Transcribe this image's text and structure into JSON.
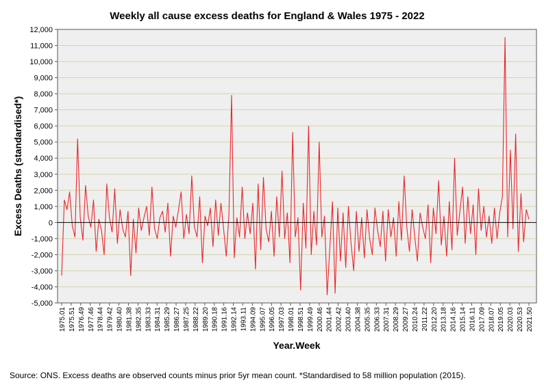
{
  "chart_data": {
    "type": "line",
    "title": "Weekly all cause excess deaths for England & Wales 1975 - 2022",
    "xlabel": "Year.Week",
    "ylabel": "Excess Deaths (standardised*)",
    "ylim": [
      -5000,
      12000
    ],
    "y_ticks": [
      -5000,
      -4000,
      -3000,
      -2000,
      -1000,
      0,
      1000,
      2000,
      3000,
      4000,
      5000,
      6000,
      7000,
      8000,
      9000,
      10000,
      11000,
      12000
    ],
    "y_tick_labels": [
      "-5,000",
      "-4,000",
      "-3,000",
      "-2,000",
      "-1,000",
      "0",
      "1,000",
      "2,000",
      "3,000",
      "4,000",
      "5,000",
      "6,000",
      "7,000",
      "8,000",
      "9,000",
      "10,000",
      "11,000",
      "12,000"
    ],
    "x_tick_labels": [
      "1975.01",
      "1975.51",
      "1976.49",
      "1977.46",
      "1978.44",
      "1979.42",
      "1980.40",
      "1981.38",
      "1982.35",
      "1983.33",
      "1984.31",
      "1985.29",
      "1986.27",
      "1987.25",
      "1988.22",
      "1989.20",
      "1990.18",
      "1991.16",
      "1992.14",
      "1993.11",
      "1994.09",
      "1995.07",
      "1996.05",
      "1997.03",
      "1998.01",
      "1998.51",
      "1999.49",
      "2000.46",
      "2001.44",
      "2002.42",
      "2003.40",
      "2004.38",
      "2005.35",
      "2006.33",
      "2007.31",
      "2008.29",
      "2009.27",
      "2010.24",
      "2011.22",
      "2012.20",
      "2013.18",
      "2014.16",
      "2015.14",
      "2016.11",
      "2017.09",
      "2018.07",
      "2019.05",
      "2020.03",
      "2020.53",
      "2021.50"
    ],
    "grid": true,
    "zero_line": true,
    "legend": "none",
    "series_color": "#e8262a",
    "series": [
      {
        "name": "Excess deaths",
        "x_start": 0,
        "x_end": 49,
        "values": [
          -3300,
          1400,
          800,
          1900,
          -200,
          -900,
          5200,
          300,
          -1100,
          2300,
          400,
          -300,
          1400,
          -1800,
          200,
          -500,
          -2000,
          2400,
          300,
          -600,
          2100,
          -1300,
          800,
          -400,
          -900,
          700,
          -3300,
          200,
          -1900,
          900,
          -500,
          300,
          1000,
          -800,
          2200,
          -400,
          -1000,
          300,
          700,
          -600,
          1200,
          -2100,
          400,
          -300,
          800,
          1900,
          -1000,
          500,
          -700,
          2900,
          -300,
          -900,
          1600,
          -2500,
          400,
          -200,
          900,
          -1500,
          1400,
          -800,
          1200,
          -400,
          -2100,
          500,
          7900,
          -2200,
          300,
          -900,
          2200,
          -1000,
          600,
          -700,
          1200,
          -2900,
          2400,
          -1700,
          2800,
          -400,
          -1200,
          700,
          -2100,
          1600,
          -900,
          3200,
          -1000,
          600,
          -2500,
          5600,
          -900,
          300,
          -4200,
          1200,
          -1600,
          6000,
          -2000,
          700,
          -1400,
          5000,
          -900,
          400,
          -4500,
          -1600,
          1300,
          -4400,
          900,
          -2400,
          600,
          -2800,
          1000,
          -1300,
          -3000,
          700,
          -1800,
          300,
          -2200,
          800,
          -1000,
          -2000,
          900,
          -500,
          -1500,
          700,
          -2400,
          800,
          -900,
          300,
          -2100,
          1300,
          -1100,
          2900,
          -300,
          -1800,
          800,
          -900,
          -2400,
          600,
          -300,
          -1000,
          1100,
          -2500,
          900,
          -700,
          2600,
          -1400,
          400,
          -2100,
          1300,
          -1700,
          4000,
          -800,
          700,
          2200,
          -1300,
          1600,
          -700,
          1100,
          -2000,
          2100,
          -500,
          1000,
          -900,
          400,
          -1300,
          900,
          -1000,
          600,
          1600,
          11500,
          -900,
          4500,
          -400,
          5500,
          -1800,
          1800,
          -1200,
          800,
          200
        ]
      }
    ],
    "source_note": "Source: ONS. Excess deaths are observed counts minus prior 5yr mean count. *Standardised to 58 million population (2015)."
  }
}
